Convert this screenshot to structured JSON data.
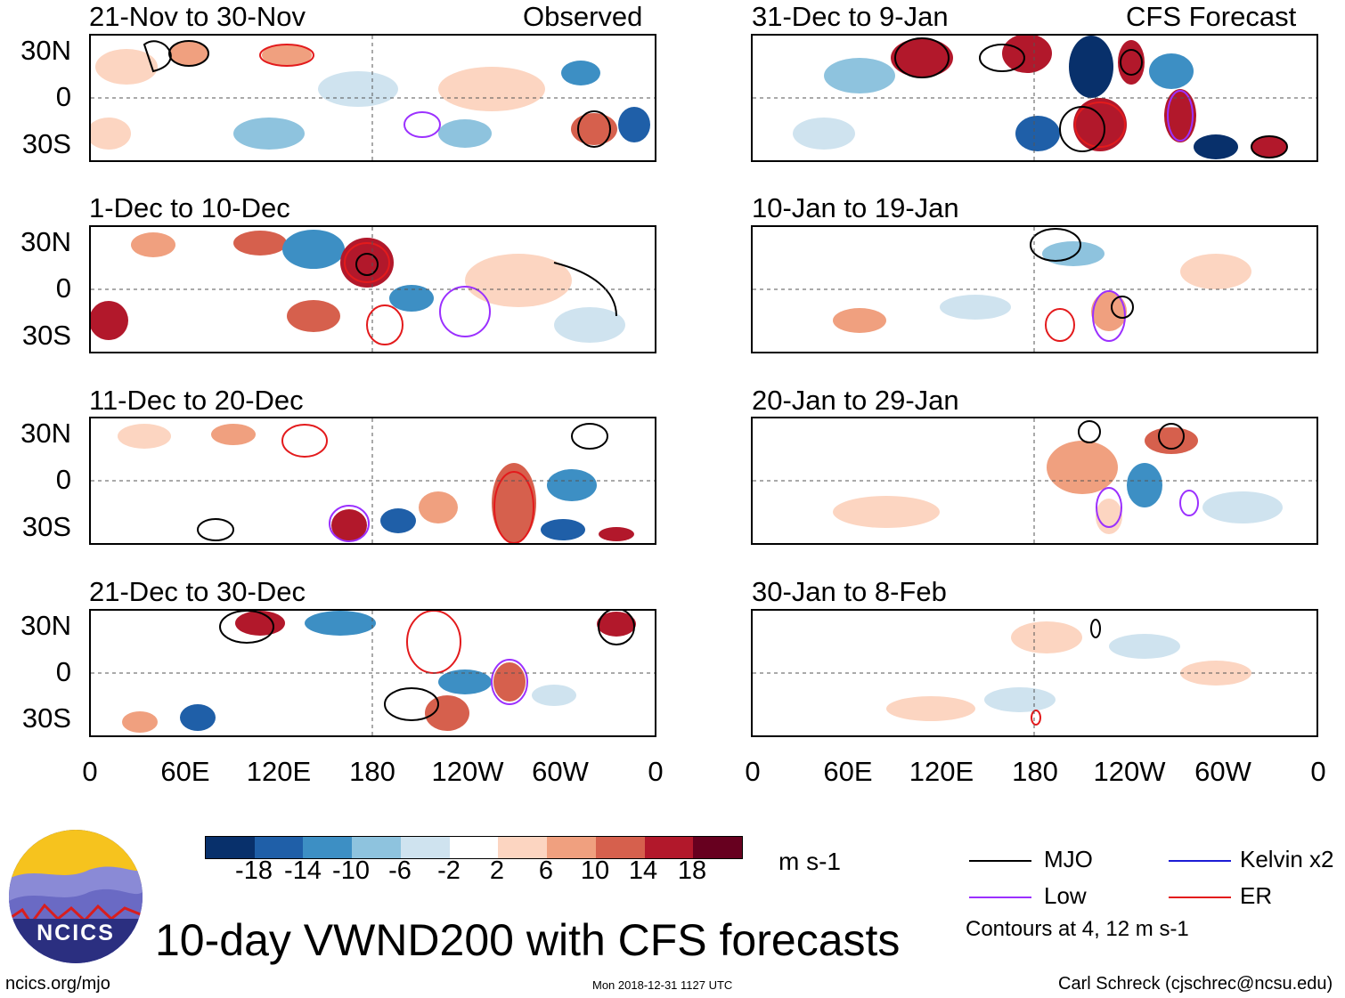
{
  "title": "10-day VWND200 with CFS forecasts",
  "site": "ncics.org/mjo",
  "timestamp": "Mon 2018-12-31 1127 UTC",
  "author": "Carl Schreck (cjschrec@ncsu.edu)",
  "logo_text": "NCICS",
  "left_column_label": "Observed",
  "right_column_label": "CFS Forecast",
  "panels_left": [
    {
      "title": "21-Nov to 30-Nov"
    },
    {
      "title": "1-Dec to 10-Dec"
    },
    {
      "title": "11-Dec to 20-Dec"
    },
    {
      "title": "21-Dec to 30-Dec"
    }
  ],
  "panels_right": [
    {
      "title": "31-Dec to 9-Jan"
    },
    {
      "title": "10-Jan to 19-Jan"
    },
    {
      "title": "20-Jan to 29-Jan"
    },
    {
      "title": "30-Jan to 8-Feb"
    }
  ],
  "lat_labels": [
    "30N",
    "0",
    "30S"
  ],
  "lon_labels": [
    "0",
    "60E",
    "120E",
    "180",
    "120W",
    "60W",
    "0"
  ],
  "colorbar": {
    "ticks": [
      "-18",
      "-14",
      "-10",
      "-6",
      "-2",
      "2",
      "6",
      "10",
      "14",
      "18"
    ],
    "units": "m s-1",
    "colors": [
      "#08306b",
      "#1f5fa8",
      "#3d8fc4",
      "#8ec3de",
      "#cfe3ef",
      "#ffffff",
      "#fcd5c1",
      "#f0a07f",
      "#d6604d",
      "#b2182b",
      "#67001f"
    ]
  },
  "legend": {
    "items": [
      {
        "label": "MJO",
        "color": "#000000"
      },
      {
        "label": "Kelvin x2",
        "color": "#1c1cd6"
      },
      {
        "label": "Low",
        "color": "#9b30ff"
      },
      {
        "label": "ER",
        "color": "#e31a1c"
      }
    ],
    "note": "Contours at 4, 12 m s-1"
  }
}
